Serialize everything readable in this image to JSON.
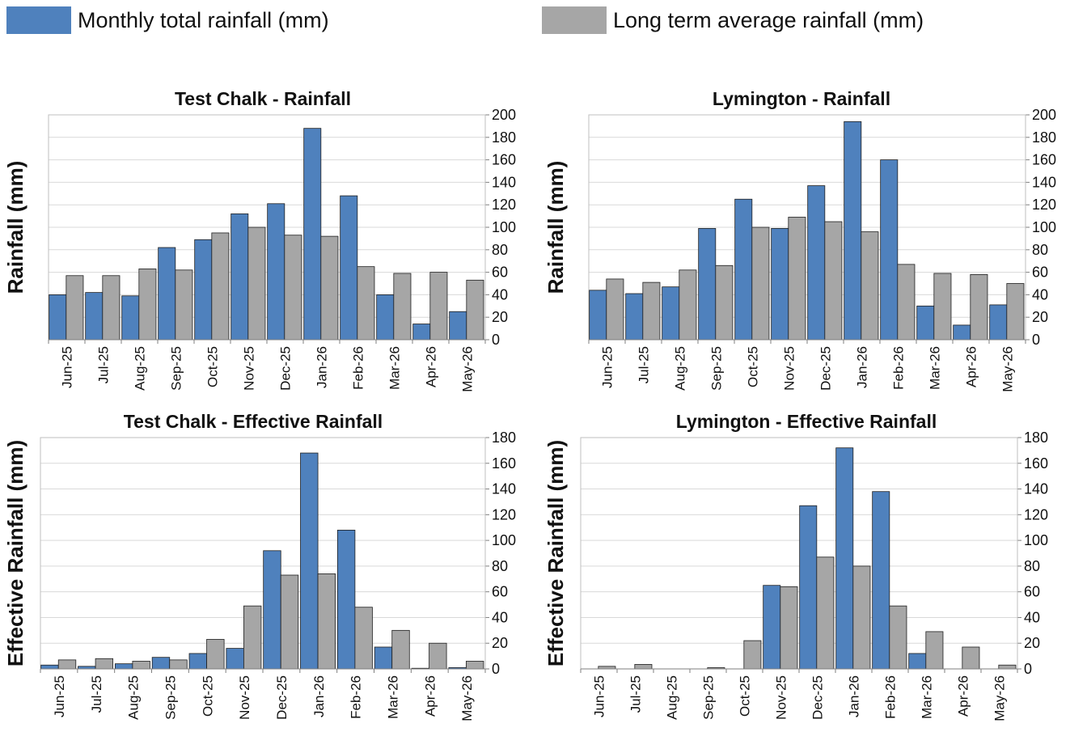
{
  "legend": {
    "monthly_label": "Monthly total rainfall (mm)",
    "average_label": "Long term average rainfall (mm)"
  },
  "colors": {
    "monthly": "#4f81bd",
    "average": "#a6a6a6",
    "bar_outline": "#1f1f1f"
  },
  "chart_data": [
    {
      "type": "bar",
      "title": "Test Chalk - Rainfall",
      "ylabel": "Rainfall (mm)",
      "xlabel": "",
      "ylim": [
        0,
        200
      ],
      "ytick_step": 20,
      "ytick_labels_hidden_on_left": true,
      "grid": true,
      "categories": [
        "Jun-25",
        "Jul-25",
        "Aug-25",
        "Sep-25",
        "Oct-25",
        "Nov-25",
        "Dec-25",
        "Jan-26",
        "Feb-26",
        "Mar-26",
        "Apr-26",
        "May-26"
      ],
      "series": [
        {
          "name": "Monthly total rainfall (mm)",
          "values": [
            40,
            42,
            39,
            82,
            89,
            112,
            121,
            188,
            128,
            40,
            14,
            25
          ]
        },
        {
          "name": "Long term average rainfall (mm)",
          "values": [
            57,
            57,
            63,
            62,
            95,
            100,
            93,
            92,
            65,
            59,
            60,
            53
          ]
        }
      ]
    },
    {
      "type": "bar",
      "title": "Lymington - Rainfall",
      "ylabel": "Rainfall (mm)",
      "xlabel": "",
      "ylim": [
        0,
        200
      ],
      "ytick_step": 20,
      "grid": true,
      "categories": [
        "Jun-25",
        "Jul-25",
        "Aug-25",
        "Sep-25",
        "Oct-25",
        "Nov-25",
        "Dec-25",
        "Jan-26",
        "Feb-26",
        "Mar-26",
        "Apr-26",
        "May-26"
      ],
      "series": [
        {
          "name": "Monthly total rainfall (mm)",
          "values": [
            44,
            41,
            47,
            99,
            125,
            99,
            137,
            194,
            160,
            30,
            13,
            31
          ]
        },
        {
          "name": "Long term average rainfall (mm)",
          "values": [
            54,
            51,
            62,
            66,
            100,
            109,
            105,
            96,
            67,
            59,
            58,
            50
          ]
        }
      ]
    },
    {
      "type": "bar",
      "title": "Test  Chalk - Effective Rainfall",
      "ylabel": "Effective Rainfall (mm)",
      "xlabel": "",
      "ylim": [
        0,
        180
      ],
      "ytick_step": 20,
      "grid": true,
      "categories": [
        "Jun-25",
        "Jul-25",
        "Aug-25",
        "Sep-25",
        "Oct-25",
        "Nov-25",
        "Dec-25",
        "Jan-26",
        "Feb-26",
        "Mar-26",
        "Apr-26",
        "May-26"
      ],
      "series": [
        {
          "name": "Monthly total rainfall (mm)",
          "values": [
            3,
            2,
            4,
            9,
            12,
            16,
            92,
            168,
            108,
            17,
            0.5,
            1
          ]
        },
        {
          "name": "Long term average rainfall (mm)",
          "values": [
            7,
            8,
            6,
            7,
            23,
            49,
            73,
            74,
            48,
            30,
            20,
            6
          ]
        }
      ]
    },
    {
      "type": "bar",
      "title": "Lymington - Effective Rainfall",
      "ylabel": "Effective Rainfall (mm)",
      "xlabel": "",
      "ylim": [
        0,
        180
      ],
      "ytick_step": 20,
      "grid": true,
      "categories": [
        "Jun-25",
        "Jul-25",
        "Aug-25",
        "Sep-25",
        "Oct-25",
        "Nov-25",
        "Dec-25",
        "Jan-26",
        "Feb-26",
        "Mar-26",
        "Apr-26",
        "May-26"
      ],
      "series": [
        {
          "name": "Monthly total rainfall (mm)",
          "values": [
            0,
            0,
            0,
            0,
            0,
            65,
            127,
            172,
            138,
            12,
            0,
            0
          ]
        },
        {
          "name": "Long term average rainfall (mm)",
          "values": [
            2,
            3.5,
            0,
            1,
            22,
            64,
            87,
            80,
            49,
            29,
            17,
            3
          ]
        }
      ]
    }
  ]
}
